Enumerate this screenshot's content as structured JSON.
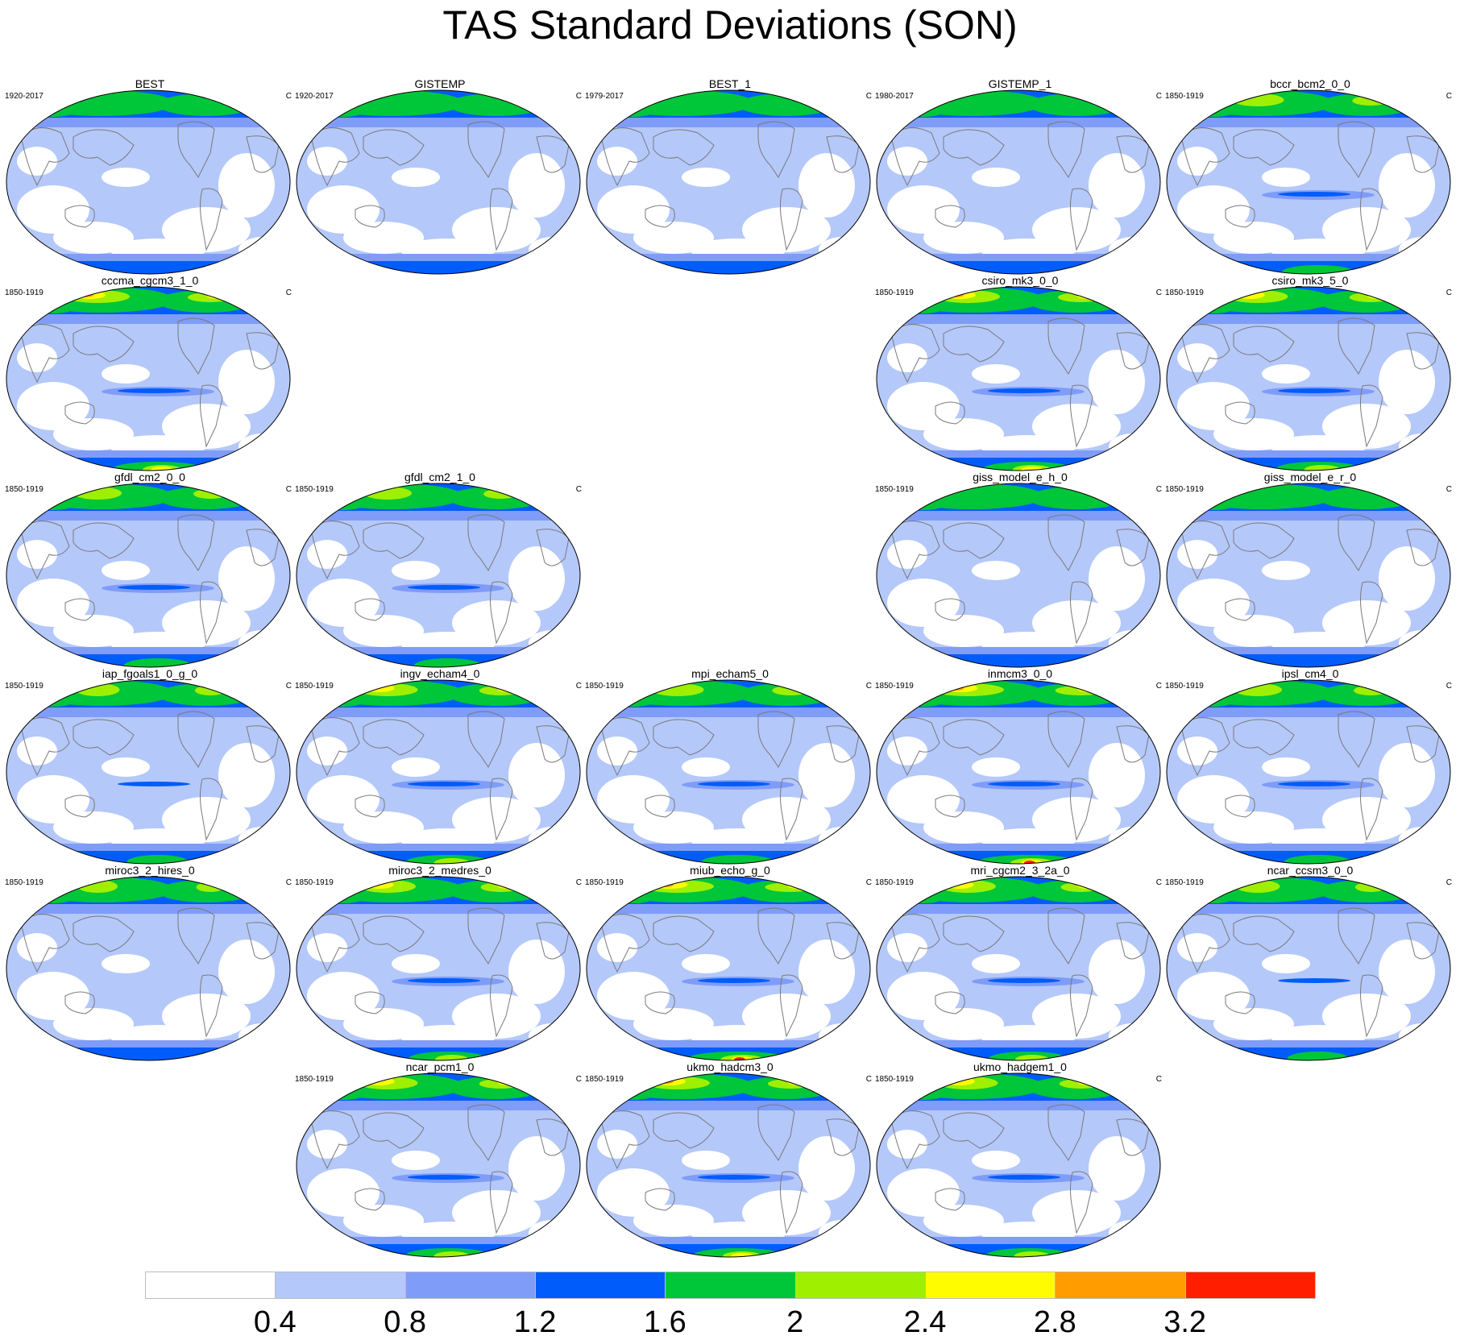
{
  "title": "TAS Standard Deviations (SON)",
  "panel_units": "C",
  "colors": [
    "#ffffff",
    "#b4c8fa",
    "#7f9cf8",
    "#005cfa",
    "#00c63a",
    "#9ef000",
    "#fffc00",
    "#ff9c00",
    "#ff1e00"
  ],
  "colorbar_labels": [
    "0.4",
    "0.8",
    "1.2",
    "1.6",
    "2",
    "2.4",
    "2.8",
    "3.2"
  ],
  "panels": [
    {
      "title": "BEST",
      "years": "1920-2017",
      "row": 0,
      "col": 0,
      "intensity": 0.4
    },
    {
      "title": "GISTEMP",
      "years": "1920-2017",
      "row": 0,
      "col": 1,
      "intensity": 0.35
    },
    {
      "title": "BEST_1",
      "years": "1979-2017",
      "row": 0,
      "col": 2,
      "intensity": 0.4
    },
    {
      "title": "GISTEMP_1",
      "years": "1980-2017",
      "row": 0,
      "col": 3,
      "intensity": 0.35
    },
    {
      "title": "bccr_bcm2_0_0",
      "years": "1850-1919",
      "row": 0,
      "col": 4,
      "intensity": 0.65
    },
    {
      "title": "cccma_cgcm3_1_0",
      "years": "1850-1919",
      "row": 1,
      "col": 0,
      "intensity": 0.8
    },
    {
      "title": "csiro_mk3_0_0",
      "years": "1850-1919",
      "row": 1,
      "col": 3,
      "intensity": 0.8
    },
    {
      "title": "csiro_mk3_5_0",
      "years": "1850-1919",
      "row": 1,
      "col": 4,
      "intensity": 0.75
    },
    {
      "title": "gfdl_cm2_0_0",
      "years": "1850-1919",
      "row": 2,
      "col": 0,
      "intensity": 0.6
    },
    {
      "title": "gfdl_cm2_1_0",
      "years": "1850-1919",
      "row": 2,
      "col": 1,
      "intensity": 0.6
    },
    {
      "title": "giss_model_e_h_0",
      "years": "1850-1919",
      "row": 2,
      "col": 3,
      "intensity": 0.45
    },
    {
      "title": "giss_model_e_r_0",
      "years": "1850-1919",
      "row": 2,
      "col": 4,
      "intensity": 0.45
    },
    {
      "title": "iap_fgoals1_0_g_0",
      "years": "1850-1919",
      "row": 3,
      "col": 0,
      "intensity": 0.55
    },
    {
      "title": "ingv_echam4_0",
      "years": "1850-1919",
      "row": 3,
      "col": 1,
      "intensity": 0.75
    },
    {
      "title": "mpi_echam5_0",
      "years": "1850-1919",
      "row": 3,
      "col": 2,
      "intensity": 0.65
    },
    {
      "title": "inmcm3_0_0",
      "years": "1850-1919",
      "row": 3,
      "col": 3,
      "intensity": 0.9
    },
    {
      "title": "ipsl_cm4_0",
      "years": "1850-1919",
      "row": 3,
      "col": 4,
      "intensity": 0.6
    },
    {
      "title": "miroc3_2_hires_0",
      "years": "1850-1919",
      "row": 4,
      "col": 0,
      "intensity": 0.5
    },
    {
      "title": "miroc3_2_medres_0",
      "years": "1850-1919",
      "row": 4,
      "col": 1,
      "intensity": 0.7
    },
    {
      "title": "miub_echo_g_0",
      "years": "1850-1919",
      "row": 4,
      "col": 2,
      "intensity": 0.9
    },
    {
      "title": "mri_cgcm2_3_2a_0",
      "years": "1850-1919",
      "row": 4,
      "col": 3,
      "intensity": 0.7
    },
    {
      "title": "ncar_ccsm3_0_0",
      "years": "1850-1919",
      "row": 4,
      "col": 4,
      "intensity": 0.55
    },
    {
      "title": "ncar_pcm1_0",
      "years": "1850-1919",
      "row": 5,
      "col": 1,
      "intensity": 0.75
    },
    {
      "title": "ukmo_hadcm3_0",
      "years": "1850-1919",
      "row": 5,
      "col": 2,
      "intensity": 0.8
    },
    {
      "title": "ukmo_hadgem1_0",
      "years": "1850-1919",
      "row": 5,
      "col": 3,
      "intensity": 0.75
    }
  ]
}
